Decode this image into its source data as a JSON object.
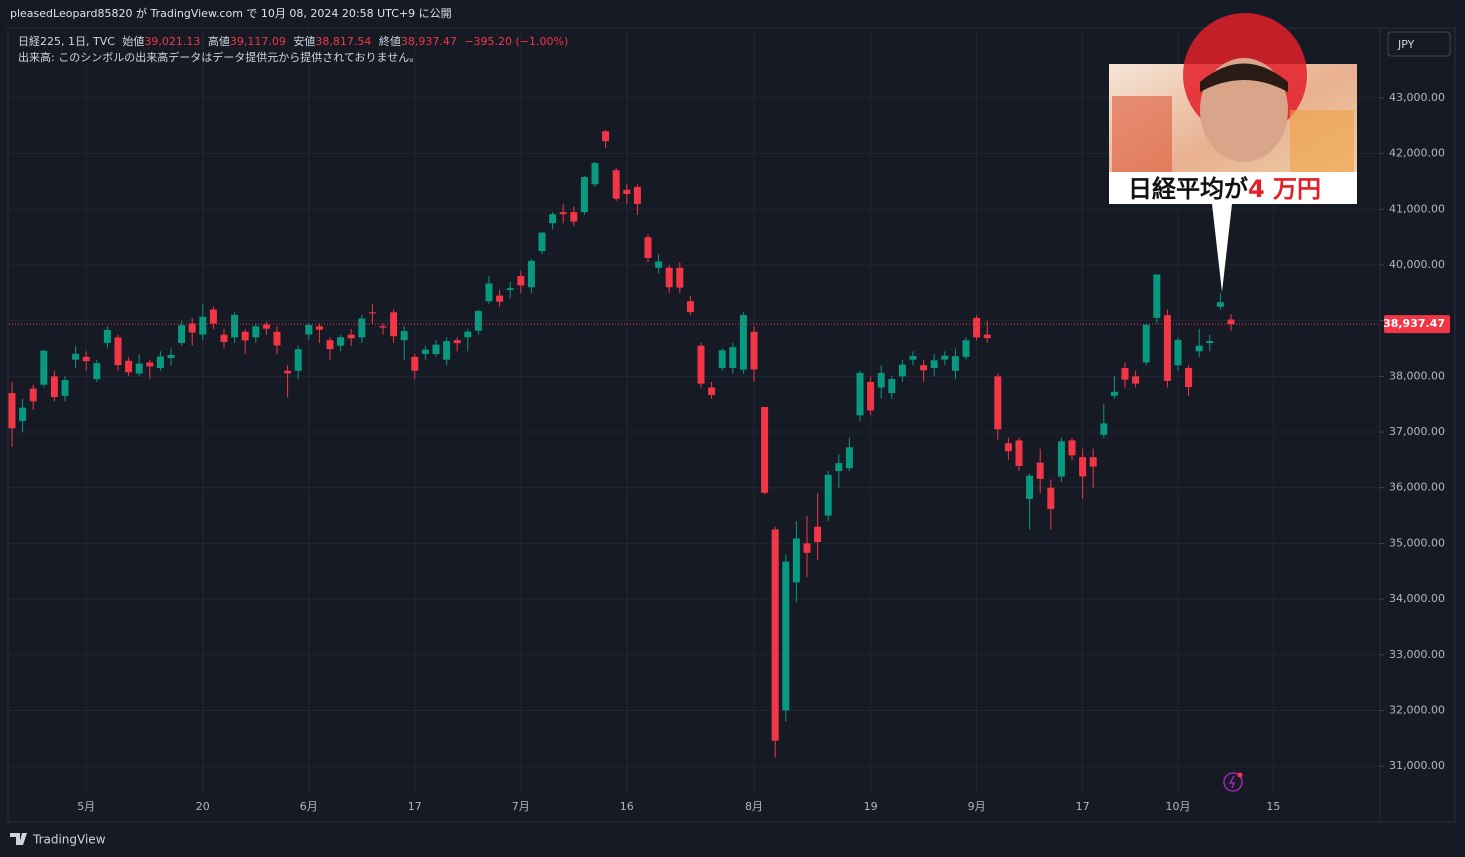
{
  "header": {
    "publish": "pleasedLeopard85820 が TradingView.com で 10月 08, 2024 20:58 UTC+9 に公開",
    "symbol": "日経225, 1日, TVC",
    "ohlc": [
      {
        "label": "始値",
        "value": "39,021.13"
      },
      {
        "label": "高値",
        "value": "39,117.09"
      },
      {
        "label": "安値",
        "value": "38,817.54"
      },
      {
        "label": "終値",
        "value": "38,937.47"
      }
    ],
    "change": "−395.20 (−1.00%)",
    "volume_note": "出来高: このシンボルの出来高データはデータ提供元から提供されておりません。",
    "currency": "JPY",
    "brand": "TradingView"
  },
  "chart_data": {
    "type": "candlestick",
    "categories": [
      null,
      null,
      null,
      null,
      null,
      null,
      null,
      "5月",
      null,
      null,
      null,
      null,
      null,
      null,
      null,
      null,
      null,
      null,
      "20",
      null,
      null,
      null,
      null,
      null,
      null,
      null,
      null,
      null,
      "6月",
      null,
      null,
      null,
      null,
      null,
      null,
      null,
      null,
      null,
      "17",
      null,
      null,
      null,
      null,
      null,
      null,
      null,
      null,
      null,
      "7月",
      null,
      null,
      null,
      null,
      null,
      null,
      null,
      null,
      null,
      "16",
      null,
      null,
      null,
      null,
      null,
      null,
      null,
      null,
      null,
      null,
      null,
      "8月",
      null,
      null,
      null,
      null,
      null,
      null,
      null,
      null,
      null,
      null,
      "19",
      null,
      null,
      null,
      null,
      null,
      null,
      null,
      null,
      null,
      "9月",
      null,
      null,
      null,
      null,
      null,
      null,
      null,
      null,
      null,
      "17",
      null,
      null,
      null,
      null,
      null,
      null,
      null,
      null,
      "10月",
      null,
      null,
      null,
      null,
      null,
      null,
      null,
      null,
      "15",
      null,
      null,
      null,
      null,
      null,
      null,
      null,
      null,
      null
    ],
    "open": [
      37700,
      37200,
      37780,
      37850,
      38000,
      37650,
      38300,
      38350,
      37950,
      38600,
      38700,
      38280,
      38050,
      38250,
      38150,
      38330,
      38600,
      38950,
      38750,
      39200,
      38750,
      38700,
      38800,
      38700,
      38930,
      38800,
      38100,
      38100,
      38750,
      38900,
      38650,
      38550,
      38750,
      38700,
      39150,
      38900,
      39150,
      38650,
      38350,
      38400,
      38400,
      38300,
      38650,
      38700,
      38820,
      39350,
      39450,
      39550,
      39800,
      39600,
      40250,
      40750,
      40950,
      40950,
      40950,
      41450,
      42400,
      41700,
      41350,
      41400,
      40500,
      39950,
      39950,
      39950,
      39350,
      38550,
      37800,
      38150,
      38150,
      38120,
      38800,
      37450,
      35250,
      32000,
      34300,
      35000,
      35300,
      35500,
      36300,
      36350,
      37300,
      37900,
      37800,
      37700,
      38000,
      38300,
      38200,
      38150,
      38300,
      38100,
      38350,
      39050,
      38750,
      38000,
      36800,
      36850,
      35800,
      36450,
      36000,
      36200,
      36850,
      36550,
      36550,
      36950,
      37650,
      38150,
      38000,
      38250,
      39050,
      39100,
      38200,
      38150,
      38450,
      38600,
      39250,
      39021.13,
      null,
      null,
      null,
      null,
      null,
      null,
      null,
      null,
      null,
      null,
      null,
      null,
      null
    ],
    "high": [
      37900,
      37600,
      37850,
      38480,
      38100,
      38000,
      38550,
      38450,
      38300,
      38900,
      38750,
      38350,
      38400,
      38300,
      38450,
      38500,
      39000,
      39050,
      39300,
      39250,
      38850,
      39150,
      38850,
      38950,
      38980,
      38900,
      38200,
      38550,
      38950,
      38950,
      38700,
      38750,
      38850,
      39100,
      39300,
      38950,
      39200,
      38900,
      38400,
      38550,
      38650,
      38700,
      38700,
      38850,
      39200,
      39800,
      39550,
      39700,
      39900,
      40100,
      40600,
      40950,
      41100,
      41050,
      41600,
      41850,
      42426,
      41750,
      41450,
      41450,
      40550,
      40200,
      40000,
      40050,
      39450,
      38600,
      37900,
      38500,
      38600,
      39150,
      38900,
      37450,
      35300,
      34800,
      35400,
      35500,
      35900,
      36300,
      36600,
      36900,
      38100,
      38000,
      38200,
      38000,
      38300,
      38450,
      38300,
      38400,
      38450,
      38500,
      38700,
      39100,
      39000,
      38050,
      36900,
      36900,
      36250,
      36700,
      36150,
      36900,
      36900,
      36700,
      36700,
      37500,
      38000,
      38250,
      38100,
      38950,
      39830,
      39200,
      38700,
      38200,
      38850,
      38750,
      39500,
      39117.09,
      null,
      null,
      null,
      null,
      null,
      null,
      null,
      null,
      null,
      null,
      null,
      null,
      null
    ],
    "low": [
      36734,
      37000,
      37400,
      37800,
      37550,
      37550,
      38150,
      38100,
      37900,
      38500,
      38100,
      38000,
      38000,
      37950,
      38100,
      38200,
      38550,
      38550,
      38650,
      38850,
      38500,
      38600,
      38400,
      38600,
      38750,
      38400,
      37620,
      37950,
      38650,
      38600,
      38300,
      38450,
      38550,
      38600,
      38950,
      38750,
      38600,
      38300,
      37950,
      38300,
      38350,
      38200,
      38450,
      38450,
      38750,
      39300,
      39250,
      39400,
      39500,
      39500,
      40200,
      40650,
      40750,
      40700,
      40900,
      41400,
      42100,
      41150,
      41100,
      40900,
      40050,
      39850,
      39500,
      39500,
      39100,
      37800,
      37600,
      38100,
      38050,
      38050,
      37900,
      35880,
      31156,
      31800,
      33950,
      34400,
      34700,
      35400,
      36000,
      36300,
      37200,
      37300,
      37600,
      37600,
      37900,
      38200,
      37900,
      38000,
      38200,
      37950,
      38300,
      38650,
      38600,
      36850,
      36500,
      36300,
      35250,
      35900,
      35250,
      36100,
      36500,
      35800,
      36000,
      36900,
      37600,
      37800,
      37800,
      38200,
      38950,
      37800,
      38100,
      37650,
      38350,
      38450,
      39200,
      38817.54,
      null,
      null,
      null,
      null,
      null,
      null,
      null,
      null,
      null,
      null,
      null,
      null,
      null
    ],
    "close": [
      37068,
      37438,
      37552,
      38460,
      37628,
      37934,
      38405,
      38274,
      38236,
      38835,
      38202,
      38073,
      38229,
      38179,
      38356,
      38385,
      38920,
      38787,
      39069,
      38946,
      38617,
      39103,
      38646,
      38900,
      38855,
      38556,
      38054,
      38487,
      38923,
      38837,
      38490,
      38703,
      38683,
      39038,
      39134,
      38876,
      38720,
      38814,
      38102,
      38482,
      38570,
      38633,
      38596,
      38804,
      39173,
      39667,
      39341,
      39583,
      39631,
      40074,
      40580,
      40913,
      40912,
      40780,
      41580,
      41831,
      42224,
      41190,
      41275,
      41097,
      40126,
      40063,
      39599,
      39594,
      39154,
      37869,
      37667,
      38468,
      38525,
      39101,
      38126,
      35909,
      31458,
      34675,
      35089,
      34831,
      35025,
      36232,
      36442,
      36726,
      38062,
      37388,
      38062,
      37951,
      38211,
      38364,
      38110,
      38288,
      38371,
      38362,
      38647,
      38700,
      38686,
      37047,
      36657,
      36391,
      36215,
      36159,
      35619,
      36833,
      36581,
      36203,
      36380,
      37155,
      37723,
      37940,
      37870,
      38926,
      39829,
      37919,
      38651,
      37808,
      38552,
      38635,
      39332,
      38937.47,
      null,
      null,
      null,
      null,
      null,
      null,
      null,
      null,
      null,
      null,
      null,
      null,
      null
    ],
    "up_color": "#089981",
    "down_color": "#f23645",
    "last_price_label": "38,937.47",
    "ylim": [
      30015,
      44220
    ],
    "yticks": [
      {
        "value": 31000,
        "label": "31,000.00"
      },
      {
        "value": 32000,
        "label": "32,000.00"
      },
      {
        "value": 33000,
        "label": "33,000.00"
      },
      {
        "value": 34000,
        "label": "34,000.00"
      },
      {
        "value": 35000,
        "label": "35,000.00"
      },
      {
        "value": 36000,
        "label": "36,000.00"
      },
      {
        "value": 37000,
        "label": "37,000.00"
      },
      {
        "value": 38000,
        "label": "38,000.00"
      },
      {
        "value": 39000,
        "label": "39,000.00"
      },
      {
        "value": 40000,
        "label": "40,000.00"
      },
      {
        "value": 41000,
        "label": "41,000.00"
      },
      {
        "value": 42000,
        "label": "42,000.00"
      },
      {
        "value": 43000,
        "label": "43,000.00"
      }
    ],
    "grid": true,
    "annotation_caption": [
      "日経平均が",
      "4 万円"
    ]
  }
}
